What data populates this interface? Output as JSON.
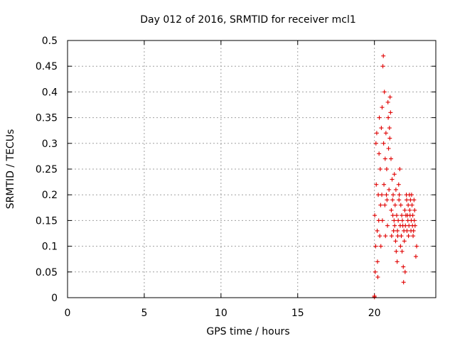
{
  "chart_data": {
    "type": "scatter",
    "title": "Day 012 of 2016, SRMTID for receiver mcl1",
    "xlabel": "GPS time / hours",
    "ylabel": "SRMTID / TECUs",
    "xlim": [
      0,
      24
    ],
    "ylim": [
      0,
      0.5
    ],
    "xticks": [
      0,
      5,
      10,
      15,
      20
    ],
    "xtick_labels": [
      "0",
      "5",
      "10",
      "15",
      "20"
    ],
    "yticks": [
      0,
      0.05,
      0.1,
      0.15,
      0.2,
      0.25,
      0.3,
      0.35,
      0.4,
      0.45,
      0.5
    ],
    "ytick_labels": [
      "0",
      "0.05",
      "0.1",
      "0.15",
      "0.2",
      "0.25",
      "0.3",
      "0.35",
      "0.4",
      "0.45",
      "0.5"
    ],
    "grid": true,
    "marker": "+",
    "color": "#e00000",
    "series": [
      {
        "x": [
          20.0,
          20.0,
          20.02,
          20.05,
          20.08,
          20.1,
          20.12,
          20.15,
          20.18,
          20.2,
          20.22,
          20.25,
          20.28,
          20.3,
          20.32,
          20.35,
          20.38,
          20.4,
          20.42,
          20.45,
          20.48,
          20.5,
          20.52,
          20.55,
          20.58,
          20.6,
          20.62,
          20.65,
          20.68,
          20.7,
          20.72,
          20.75,
          20.78,
          20.8,
          20.82,
          20.85,
          20.88,
          20.9,
          20.92,
          20.95,
          20.98,
          21.0,
          21.02,
          21.05,
          21.08,
          21.1,
          21.12,
          21.15,
          21.18,
          21.2,
          21.22,
          21.25,
          21.28,
          21.3,
          21.32,
          21.35,
          21.38,
          21.4,
          21.42,
          21.45,
          21.48,
          21.5,
          21.52,
          21.55,
          21.58,
          21.6,
          21.62,
          21.65,
          21.68,
          21.7,
          21.72,
          21.75,
          21.78,
          21.8,
          21.82,
          21.85,
          21.88,
          21.9,
          21.92,
          21.95,
          21.98,
          22.0,
          22.02,
          22.05,
          22.08,
          22.1,
          22.12,
          22.15,
          22.18,
          22.2,
          22.22,
          22.25,
          22.28,
          22.3,
          22.32,
          22.35,
          22.38,
          22.4,
          22.42,
          22.45,
          22.48,
          22.5,
          22.52,
          22.55,
          22.58,
          22.6,
          22.62,
          22.65,
          22.7,
          22.75
        ],
        "y": [
          0.001,
          0.003,
          0.16,
          0.05,
          0.1,
          0.3,
          0.22,
          0.32,
          0.13,
          0.07,
          0.04,
          0.2,
          0.15,
          0.28,
          0.35,
          0.12,
          0.25,
          0.18,
          0.1,
          0.33,
          0.2,
          0.37,
          0.15,
          0.45,
          0.47,
          0.3,
          0.22,
          0.4,
          0.18,
          0.27,
          0.12,
          0.32,
          0.2,
          0.25,
          0.19,
          0.14,
          0.38,
          0.35,
          0.29,
          0.21,
          0.33,
          0.31,
          0.39,
          0.36,
          0.27,
          0.17,
          0.12,
          0.23,
          0.19,
          0.16,
          0.2,
          0.13,
          0.15,
          0.24,
          0.14,
          0.18,
          0.11,
          0.21,
          0.09,
          0.16,
          0.07,
          0.13,
          0.12,
          0.15,
          0.22,
          0.19,
          0.2,
          0.25,
          0.14,
          0.1,
          0.18,
          0.12,
          0.16,
          0.09,
          0.15,
          0.14,
          0.06,
          0.03,
          0.13,
          0.11,
          0.17,
          0.05,
          0.14,
          0.16,
          0.2,
          0.19,
          0.13,
          0.16,
          0.15,
          0.18,
          0.12,
          0.14,
          0.2,
          0.17,
          0.16,
          0.19,
          0.13,
          0.15,
          0.2,
          0.18,
          0.14,
          0.16,
          0.12,
          0.13,
          0.19,
          0.15,
          0.17,
          0.14,
          0.08,
          0.1
        ]
      }
    ]
  }
}
